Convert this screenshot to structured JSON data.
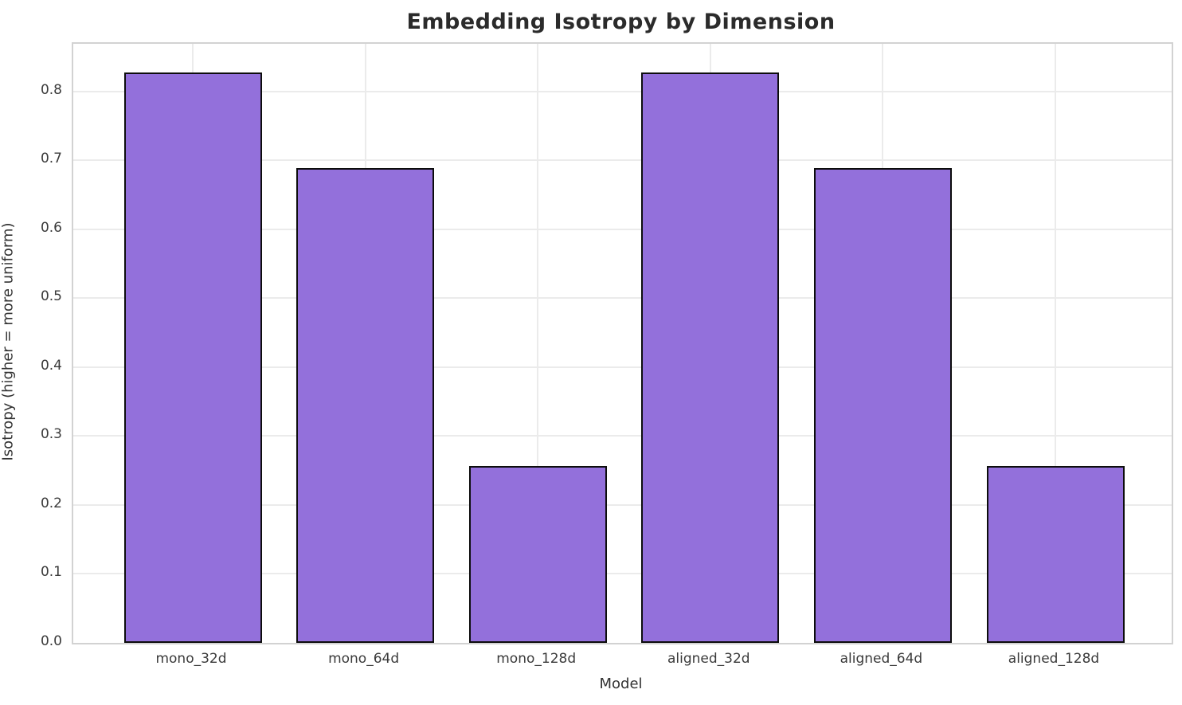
{
  "chart_data": {
    "type": "bar",
    "title": "Embedding Isotropy by Dimension",
    "xlabel": "Model",
    "ylabel": "Isotropy (higher = more uniform)",
    "categories": [
      "mono_32d",
      "mono_64d",
      "mono_128d",
      "aligned_32d",
      "aligned_64d",
      "aligned_128d"
    ],
    "values": [
      0.827,
      0.689,
      0.256,
      0.827,
      0.689,
      0.256
    ],
    "yticks": [
      0.0,
      0.1,
      0.2,
      0.3,
      0.4,
      0.5,
      0.6,
      0.7,
      0.8
    ],
    "ylim": [
      0,
      0.869
    ],
    "grid": true,
    "legend": "none",
    "colors": {
      "bar_fill": "#9370DB",
      "bar_edge": "#0d0d0d",
      "gridline": "#ebebeb",
      "spine": "#d2d2d2",
      "title_text": "#2b2b2b",
      "tick_text": "#3a3a3a"
    }
  }
}
